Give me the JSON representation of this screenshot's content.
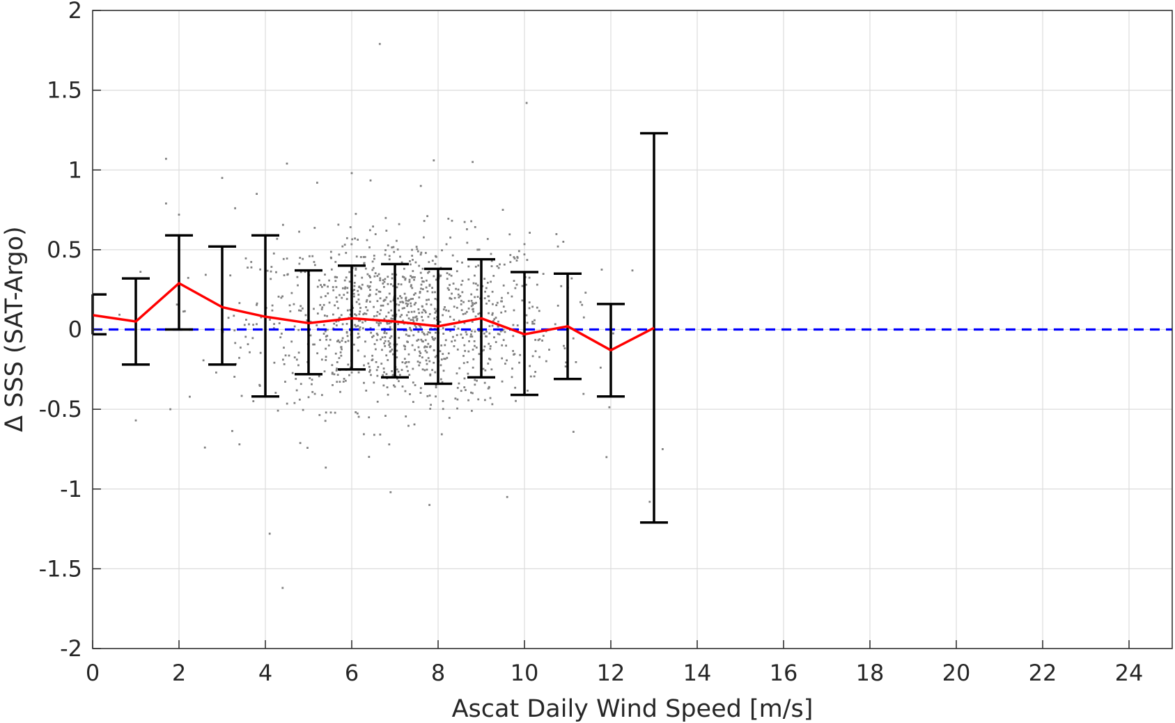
{
  "chart_data": {
    "type": "scatter",
    "xlabel": "Ascat Daily Wind Speed [m/s]",
    "ylabel": "Δ SSS (SAT-Argo)",
    "xlim": [
      0,
      25
    ],
    "ylim": [
      -2,
      2
    ],
    "xticks": [
      0,
      2,
      4,
      6,
      8,
      10,
      12,
      14,
      16,
      18,
      20,
      22,
      24
    ],
    "yticks": [
      -2,
      -1.5,
      -1,
      -0.5,
      0,
      0.5,
      1,
      1.5,
      2
    ],
    "grid": true,
    "legend": "none",
    "reference_line": {
      "y": 0,
      "color": "#0000ff",
      "style": "dashed"
    },
    "mean_line": {
      "color": "#ff0000",
      "x": [
        0,
        1,
        2,
        3,
        4,
        5,
        6,
        7,
        8,
        9,
        10,
        11,
        12,
        13
      ],
      "y": [
        0.09,
        0.05,
        0.29,
        0.14,
        0.08,
        0.04,
        0.07,
        0.05,
        0.02,
        0.07,
        -0.03,
        0.02,
        -0.13,
        0.01
      ]
    },
    "error_bars": {
      "color": "#000000",
      "x": [
        0,
        1,
        2,
        3,
        4,
        5,
        6,
        7,
        8,
        9,
        10,
        11,
        12,
        13
      ],
      "lower": [
        -0.03,
        -0.22,
        0.0,
        -0.22,
        -0.42,
        -0.28,
        -0.25,
        -0.3,
        -0.34,
        -0.3,
        -0.41,
        -0.31,
        -0.42,
        -1.21
      ],
      "upper": [
        0.22,
        0.32,
        0.59,
        0.52,
        0.59,
        0.37,
        0.4,
        0.41,
        0.38,
        0.44,
        0.36,
        0.35,
        0.16,
        1.23
      ]
    },
    "scatter_color": "#808080",
    "scatter_points": [
      [
        6.65,
        1.79
      ],
      [
        10.05,
        1.42
      ],
      [
        1.7,
        1.07
      ],
      [
        4.5,
        1.04
      ],
      [
        7.9,
        1.06
      ],
      [
        6.0,
        0.98
      ],
      [
        3.0,
        0.95
      ],
      [
        3.8,
        0.85
      ],
      [
        7.6,
        0.9
      ],
      [
        8.8,
        1.05
      ],
      [
        9.5,
        0.75
      ],
      [
        4.4,
        -1.62
      ],
      [
        4.1,
        -1.28
      ],
      [
        12.9,
        -1.08
      ],
      [
        13.2,
        -0.75
      ],
      [
        7.8,
        -1.1
      ],
      [
        6.9,
        -1.02
      ],
      [
        9.6,
        -1.05
      ],
      [
        2.6,
        -0.74
      ],
      [
        3.4,
        -0.72
      ],
      [
        1.0,
        -0.57
      ],
      [
        1.8,
        -0.5
      ],
      [
        11.9,
        -0.8
      ],
      [
        2.0,
        0.72
      ],
      [
        1.7,
        0.79
      ],
      [
        12.5,
        0.37
      ],
      [
        13.0,
        0.47
      ],
      [
        10.9,
        0.55
      ],
      [
        3.3,
        0.76
      ],
      [
        5.2,
        0.92
      ]
    ],
    "scatter_cloud_center": [
      7.2,
      0.05
    ]
  }
}
